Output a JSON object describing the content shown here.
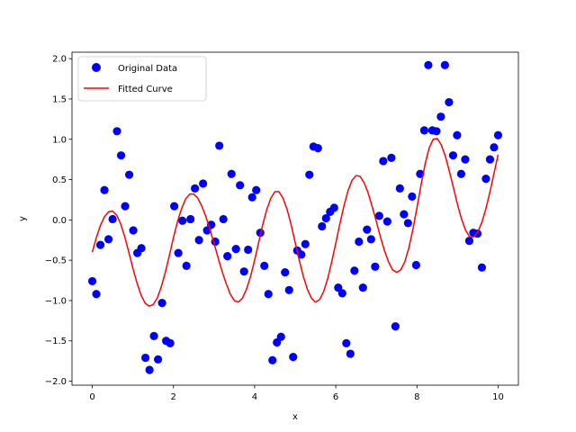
{
  "chart_data": {
    "type": "scatter",
    "xlabel": "x",
    "ylabel": "y",
    "xlim": [
      -0.5,
      10.5
    ],
    "ylim": [
      -2.05,
      2.08
    ],
    "xticks": [
      0,
      2,
      4,
      6,
      8,
      10
    ],
    "yticks": [
      -2.0,
      -1.5,
      -1.0,
      -0.5,
      0.0,
      0.5,
      1.0,
      1.5,
      2.0
    ],
    "xtick_labels": [
      "0",
      "2",
      "4",
      "6",
      "8",
      "10"
    ],
    "ytick_labels": [
      "−2.0",
      "−1.5",
      "−1.0",
      "−0.5",
      "0.0",
      "0.5",
      "1.0",
      "1.5",
      "2.0"
    ],
    "grid": false,
    "legend_placement": "upper-left",
    "series": [
      {
        "name": "Original Data",
        "kind": "scatter",
        "color": "#0000ff",
        "points": [
          [
            0.0,
            -0.76
          ],
          [
            0.1,
            -0.92
          ],
          [
            0.2,
            -0.31
          ],
          [
            0.3,
            0.37
          ],
          [
            0.4,
            -0.24
          ],
          [
            0.5,
            0.01
          ],
          [
            0.61,
            1.1
          ],
          [
            0.71,
            0.8
          ],
          [
            0.81,
            0.17
          ],
          [
            0.91,
            0.56
          ],
          [
            1.01,
            -0.13
          ],
          [
            1.11,
            -0.41
          ],
          [
            1.21,
            -0.35
          ],
          [
            1.31,
            -1.71
          ],
          [
            1.41,
            -1.86
          ],
          [
            1.52,
            -1.44
          ],
          [
            1.62,
            -1.73
          ],
          [
            1.72,
            -1.03
          ],
          [
            1.82,
            -1.5
          ],
          [
            1.92,
            -1.53
          ],
          [
            2.02,
            0.17
          ],
          [
            2.12,
            -0.41
          ],
          [
            2.22,
            -0.01
          ],
          [
            2.32,
            -0.57
          ],
          [
            2.42,
            0.01
          ],
          [
            2.53,
            0.39
          ],
          [
            2.63,
            -0.25
          ],
          [
            2.73,
            0.45
          ],
          [
            2.83,
            -0.13
          ],
          [
            2.93,
            -0.06
          ],
          [
            3.03,
            -0.27
          ],
          [
            3.13,
            0.92
          ],
          [
            3.23,
            0.01
          ],
          [
            3.33,
            -0.45
          ],
          [
            3.43,
            0.57
          ],
          [
            3.54,
            -0.36
          ],
          [
            3.64,
            0.43
          ],
          [
            3.74,
            -0.64
          ],
          [
            3.84,
            -0.37
          ],
          [
            3.94,
            0.28
          ],
          [
            4.04,
            0.37
          ],
          [
            4.14,
            -0.16
          ],
          [
            4.24,
            -0.57
          ],
          [
            4.34,
            -0.92
          ],
          [
            4.44,
            -1.74
          ],
          [
            4.55,
            -1.52
          ],
          [
            4.65,
            -1.45
          ],
          [
            4.75,
            -0.65
          ],
          [
            4.85,
            -0.87
          ],
          [
            4.95,
            -1.7
          ],
          [
            5.05,
            -0.38
          ],
          [
            5.15,
            -0.43
          ],
          [
            5.25,
            -0.3
          ],
          [
            5.35,
            0.56
          ],
          [
            5.45,
            0.91
          ],
          [
            5.56,
            0.89
          ],
          [
            5.66,
            -0.08
          ],
          [
            5.76,
            0.02
          ],
          [
            5.86,
            0.1
          ],
          [
            5.96,
            0.15
          ],
          [
            6.06,
            -0.84
          ],
          [
            6.16,
            -0.91
          ],
          [
            6.26,
            -1.53
          ],
          [
            6.36,
            -1.66
          ],
          [
            6.46,
            -0.63
          ],
          [
            6.57,
            -0.27
          ],
          [
            6.67,
            -0.84
          ],
          [
            6.77,
            -0.12
          ],
          [
            6.87,
            -0.24
          ],
          [
            6.97,
            -0.58
          ],
          [
            7.07,
            0.05
          ],
          [
            7.17,
            0.73
          ],
          [
            7.27,
            -0.02
          ],
          [
            7.37,
            0.77
          ],
          [
            7.47,
            -1.32
          ],
          [
            7.58,
            0.39
          ],
          [
            7.68,
            0.07
          ],
          [
            7.78,
            -0.04
          ],
          [
            7.88,
            0.29
          ],
          [
            7.98,
            -0.56
          ],
          [
            8.08,
            0.57
          ],
          [
            8.18,
            1.11
          ],
          [
            8.28,
            1.92
          ],
          [
            8.38,
            1.11
          ],
          [
            8.48,
            1.1
          ],
          [
            8.59,
            1.28
          ],
          [
            8.69,
            1.92
          ],
          [
            8.79,
            1.46
          ],
          [
            8.89,
            0.8
          ],
          [
            8.99,
            1.05
          ],
          [
            9.09,
            0.57
          ],
          [
            9.19,
            0.75
          ],
          [
            9.29,
            -0.26
          ],
          [
            9.39,
            -0.16
          ],
          [
            9.49,
            -0.17
          ],
          [
            9.6,
            -0.59
          ],
          [
            9.7,
            0.51
          ],
          [
            9.8,
            0.75
          ],
          [
            9.9,
            0.9
          ],
          [
            10.0,
            1.05
          ]
        ]
      },
      {
        "name": "Fitted Curve",
        "kind": "line",
        "color": "#ff0000",
        "points": [
          [
            0.0,
            -0.4
          ],
          [
            0.1,
            -0.22
          ],
          [
            0.2,
            -0.07
          ],
          [
            0.3,
            0.04
          ],
          [
            0.4,
            0.1
          ],
          [
            0.5,
            0.11
          ],
          [
            0.6,
            0.06
          ],
          [
            0.7,
            -0.05
          ],
          [
            0.8,
            -0.21
          ],
          [
            0.9,
            -0.4
          ],
          [
            1.0,
            -0.6
          ],
          [
            1.1,
            -0.78
          ],
          [
            1.2,
            -0.93
          ],
          [
            1.3,
            -1.03
          ],
          [
            1.4,
            -1.07
          ],
          [
            1.5,
            -1.05
          ],
          [
            1.6,
            -0.97
          ],
          [
            1.7,
            -0.83
          ],
          [
            1.8,
            -0.65
          ],
          [
            1.9,
            -0.44
          ],
          [
            2.0,
            -0.22
          ],
          [
            2.1,
            -0.02
          ],
          [
            2.2,
            0.14
          ],
          [
            2.3,
            0.26
          ],
          [
            2.4,
            0.32
          ],
          [
            2.5,
            0.32
          ],
          [
            2.6,
            0.27
          ],
          [
            2.7,
            0.17
          ],
          [
            2.8,
            0.04
          ],
          [
            2.9,
            -0.12
          ],
          [
            3.0,
            -0.29
          ],
          [
            3.1,
            -0.47
          ],
          [
            3.2,
            -0.64
          ],
          [
            3.3,
            -0.79
          ],
          [
            3.4,
            -0.92
          ],
          [
            3.5,
            -1.0
          ],
          [
            3.6,
            -1.02
          ],
          [
            3.7,
            -0.97
          ],
          [
            3.8,
            -0.86
          ],
          [
            3.9,
            -0.7
          ],
          [
            4.0,
            -0.5
          ],
          [
            4.1,
            -0.28
          ],
          [
            4.2,
            -0.06
          ],
          [
            4.3,
            0.13
          ],
          [
            4.4,
            0.27
          ],
          [
            4.5,
            0.35
          ],
          [
            4.6,
            0.35
          ],
          [
            4.7,
            0.27
          ],
          [
            4.8,
            0.13
          ],
          [
            4.9,
            -0.06
          ],
          [
            5.0,
            -0.28
          ],
          [
            5.1,
            -0.5
          ],
          [
            5.2,
            -0.7
          ],
          [
            5.3,
            -0.86
          ],
          [
            5.4,
            -0.97
          ],
          [
            5.5,
            -1.02
          ],
          [
            5.6,
            -0.99
          ],
          [
            5.7,
            -0.89
          ],
          [
            5.8,
            -0.73
          ],
          [
            5.9,
            -0.52
          ],
          [
            6.0,
            -0.29
          ],
          [
            6.1,
            -0.05
          ],
          [
            6.2,
            0.17
          ],
          [
            6.3,
            0.36
          ],
          [
            6.4,
            0.49
          ],
          [
            6.5,
            0.55
          ],
          [
            6.6,
            0.54
          ],
          [
            6.7,
            0.46
          ],
          [
            6.8,
            0.33
          ],
          [
            6.9,
            0.16
          ],
          [
            7.0,
            -0.02
          ],
          [
            7.1,
            -0.21
          ],
          [
            7.2,
            -0.38
          ],
          [
            7.3,
            -0.52
          ],
          [
            7.4,
            -0.62
          ],
          [
            7.5,
            -0.65
          ],
          [
            7.6,
            -0.62
          ],
          [
            7.7,
            -0.52
          ],
          [
            7.8,
            -0.35
          ],
          [
            7.9,
            -0.12
          ],
          [
            8.0,
            0.15
          ],
          [
            8.1,
            0.43
          ],
          [
            8.2,
            0.69
          ],
          [
            8.3,
            0.89
          ],
          [
            8.4,
            1.0
          ],
          [
            8.5,
            1.01
          ],
          [
            8.6,
            0.93
          ],
          [
            8.7,
            0.79
          ],
          [
            8.8,
            0.6
          ],
          [
            8.9,
            0.4
          ],
          [
            9.0,
            0.19
          ],
          [
            9.1,
            0.01
          ],
          [
            9.2,
            -0.13
          ],
          [
            9.3,
            -0.21
          ],
          [
            9.4,
            -0.21
          ],
          [
            9.5,
            -0.15
          ],
          [
            9.6,
            -0.03
          ],
          [
            9.7,
            0.14
          ],
          [
            9.8,
            0.35
          ],
          [
            9.9,
            0.58
          ],
          [
            10.0,
            0.81
          ]
        ]
      }
    ]
  }
}
